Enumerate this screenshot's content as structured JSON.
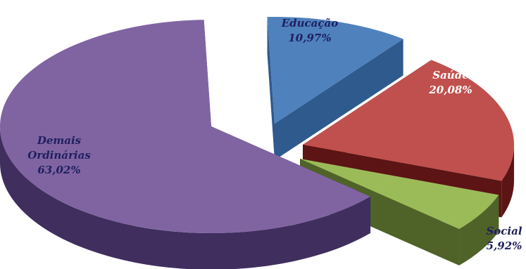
{
  "chart_data": {
    "type": "pie",
    "title": "",
    "slices": [
      {
        "name": "Educação",
        "label_lines": [
          "Educação"
        ],
        "value": 10.97,
        "value_label": "10,97%",
        "color": "#4f81bd",
        "side_color": "#2e5a8e",
        "text_color": "#1f1f5f"
      },
      {
        "name": "Saúde",
        "label_lines": [
          "Saúde"
        ],
        "value": 20.08,
        "value_label": "20,08%",
        "color": "#c0504d",
        "side_color": "#5c1414",
        "text_color": "#ffffff"
      },
      {
        "name": "Social",
        "label_lines": [
          "Social"
        ],
        "value": 5.92,
        "value_label": "5,92%",
        "color": "#9bbb59",
        "side_color": "#4f6228",
        "text_color": "#1f1f5f"
      },
      {
        "name": "Demais Ordinárias",
        "label_lines": [
          "Demais",
          "Ordinárias"
        ],
        "value": 63.02,
        "value_label": "63,02%",
        "color": "#8064a2",
        "side_color": "#3f2e5e",
        "text_color": "#1f1f5f"
      }
    ]
  }
}
